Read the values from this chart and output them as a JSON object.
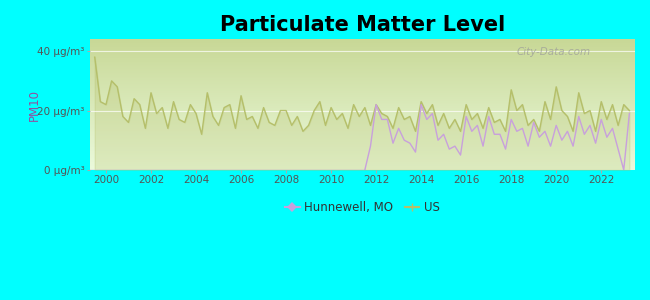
{
  "title": "Particulate Matter Level",
  "ylabel": "PM10",
  "background_color": "#00ffff",
  "plot_bg_top": "#c8d896",
  "plot_bg_bottom": "#f0fae8",
  "title_fontsize": 15,
  "ytick_labels": [
    "0 μg/m³",
    "20 μg/m³",
    "40 μg/m³"
  ],
  "ytick_values": [
    0,
    20,
    40
  ],
  "ylim": [
    0,
    44
  ],
  "xlim": [
    1999.3,
    2023.5
  ],
  "xtick_values": [
    2000,
    2002,
    2004,
    2006,
    2008,
    2010,
    2012,
    2014,
    2016,
    2018,
    2020,
    2022
  ],
  "us_color": "#b5bf6a",
  "hunnewell_color": "#c8a0dc",
  "legend_labels": [
    "Hunnewell, MO",
    "US"
  ],
  "watermark": "City-Data.com",
  "us_years": [
    1999.5,
    1999.75,
    2000.0,
    2000.25,
    2000.5,
    2000.75,
    2001.0,
    2001.25,
    2001.5,
    2001.75,
    2002.0,
    2002.25,
    2002.5,
    2002.75,
    2003.0,
    2003.25,
    2003.5,
    2003.75,
    2004.0,
    2004.25,
    2004.5,
    2004.75,
    2005.0,
    2005.25,
    2005.5,
    2005.75,
    2006.0,
    2006.25,
    2006.5,
    2006.75,
    2007.0,
    2007.25,
    2007.5,
    2007.75,
    2008.0,
    2008.25,
    2008.5,
    2008.75,
    2009.0,
    2009.25,
    2009.5,
    2009.75,
    2010.0,
    2010.25,
    2010.5,
    2010.75,
    2011.0,
    2011.25,
    2011.5,
    2011.75,
    2012.0,
    2012.25,
    2012.5,
    2012.75,
    2013.0,
    2013.25,
    2013.5,
    2013.75,
    2014.0,
    2014.25,
    2014.5,
    2014.75,
    2015.0,
    2015.25,
    2015.5,
    2015.75,
    2016.0,
    2016.25,
    2016.5,
    2016.75,
    2017.0,
    2017.25,
    2017.5,
    2017.75,
    2018.0,
    2018.25,
    2018.5,
    2018.75,
    2019.0,
    2019.25,
    2019.5,
    2019.75,
    2020.0,
    2020.25,
    2020.5,
    2020.75,
    2021.0,
    2021.25,
    2021.5,
    2021.75,
    2022.0,
    2022.25,
    2022.5,
    2022.75,
    2023.0,
    2023.25
  ],
  "us_values": [
    38,
    23,
    22,
    30,
    28,
    18,
    16,
    24,
    22,
    14,
    26,
    19,
    21,
    14,
    23,
    17,
    16,
    22,
    19,
    12,
    26,
    18,
    15,
    21,
    22,
    14,
    25,
    17,
    18,
    14,
    21,
    16,
    15,
    20,
    20,
    15,
    18,
    13,
    15,
    20,
    23,
    15,
    21,
    17,
    19,
    14,
    22,
    18,
    21,
    15,
    22,
    19,
    18,
    14,
    21,
    17,
    18,
    13,
    23,
    19,
    22,
    15,
    19,
    14,
    17,
    13,
    22,
    17,
    19,
    14,
    21,
    16,
    17,
    13,
    27,
    20,
    22,
    15,
    17,
    13,
    23,
    17,
    28,
    20,
    18,
    13,
    26,
    19,
    20,
    13,
    23,
    17,
    22,
    15,
    22,
    20
  ],
  "hunnewell_years_zero": [
    1999.3,
    2011.5
  ],
  "hunnewell_zero_val": 0,
  "hunnewell_years": [
    2011.5,
    2011.75,
    2012.0,
    2012.25,
    2012.5,
    2012.75,
    2013.0,
    2013.25,
    2013.5,
    2013.75,
    2014.0,
    2014.25,
    2014.5,
    2014.75,
    2015.0,
    2015.25,
    2015.5,
    2015.75,
    2016.0,
    2016.25,
    2016.5,
    2016.75,
    2017.0,
    2017.25,
    2017.5,
    2017.75,
    2018.0,
    2018.25,
    2018.5,
    2018.75,
    2019.0,
    2019.25,
    2019.5,
    2019.75,
    2020.0,
    2020.25,
    2020.5,
    2020.75,
    2021.0,
    2021.25,
    2021.5,
    2021.75,
    2022.0,
    2022.25,
    2022.5,
    2022.75,
    2023.0,
    2023.25
  ],
  "hunnewell_values": [
    0,
    8,
    22,
    17,
    17,
    9,
    14,
    10,
    9,
    6,
    22,
    17,
    19,
    10,
    12,
    7,
    8,
    5,
    18,
    13,
    15,
    8,
    18,
    12,
    12,
    7,
    17,
    13,
    14,
    8,
    16,
    11,
    13,
    8,
    15,
    10,
    13,
    8,
    18,
    12,
    15,
    9,
    17,
    11,
    14,
    7,
    0,
    19
  ]
}
